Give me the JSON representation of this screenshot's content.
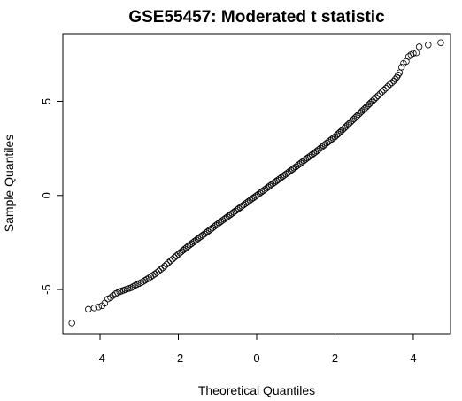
{
  "chart_data": {
    "type": "scatter",
    "title": "GSE55457: Moderated t statistic",
    "xlabel": "Theoretical Quantiles",
    "ylabel": "Sample Quantiles",
    "xlim": [
      -4.95,
      4.95
    ],
    "ylim": [
      -7.35,
      8.6
    ],
    "x_ticks": [
      -4,
      -2,
      0,
      2,
      4
    ],
    "y_ticks": [
      -5,
      0,
      5
    ],
    "grid": false,
    "legend": "none",
    "point_style": "open circle",
    "point_color": "#000000",
    "series": [
      {
        "values": [
          {
            "x": -4.72,
            "y": -6.78
          },
          {
            "x": -4.3,
            "y": -6.05
          },
          {
            "x": -4.15,
            "y": -5.98
          },
          {
            "x": -4.04,
            "y": -5.93
          },
          {
            "x": -3.95,
            "y": -5.86
          },
          {
            "x": -3.88,
            "y": -5.72
          },
          {
            "x": -3.8,
            "y": -5.5
          },
          {
            "x": -3.73,
            "y": -5.43
          },
          {
            "x": -3.67,
            "y": -5.32
          },
          {
            "x": -3.6,
            "y": -5.22
          },
          {
            "x": -3.5,
            "y": -5.12
          },
          {
            "x": -3.4,
            "y": -5.04
          },
          {
            "x": -3.3,
            "y": -4.97
          },
          {
            "x": -3.2,
            "y": -4.9
          },
          {
            "x": -3.1,
            "y": -4.78
          },
          {
            "x": -3.0,
            "y": -4.68
          },
          {
            "x": -2.9,
            "y": -4.58
          },
          {
            "x": -2.8,
            "y": -4.45
          },
          {
            "x": -2.7,
            "y": -4.32
          },
          {
            "x": -2.6,
            "y": -4.18
          },
          {
            "x": -2.5,
            "y": -4.02
          },
          {
            "x": -2.4,
            "y": -3.85
          },
          {
            "x": -2.3,
            "y": -3.66
          },
          {
            "x": -2.2,
            "y": -3.48
          },
          {
            "x": -2.1,
            "y": -3.3
          },
          {
            "x": -2.0,
            "y": -3.12
          },
          {
            "x": -1.75,
            "y": -2.7
          },
          {
            "x": -1.5,
            "y": -2.3
          },
          {
            "x": -1.25,
            "y": -1.92
          },
          {
            "x": -1.0,
            "y": -1.52
          },
          {
            "x": -0.75,
            "y": -1.14
          },
          {
            "x": -0.5,
            "y": -0.76
          },
          {
            "x": -0.25,
            "y": -0.38
          },
          {
            "x": 0.0,
            "y": 0.0
          },
          {
            "x": 0.25,
            "y": 0.38
          },
          {
            "x": 0.5,
            "y": 0.76
          },
          {
            "x": 0.75,
            "y": 1.14
          },
          {
            "x": 1.0,
            "y": 1.52
          },
          {
            "x": 1.25,
            "y": 1.92
          },
          {
            "x": 1.5,
            "y": 2.3
          },
          {
            "x": 1.75,
            "y": 2.72
          },
          {
            "x": 2.0,
            "y": 3.12
          },
          {
            "x": 2.2,
            "y": 3.5
          },
          {
            "x": 2.4,
            "y": 3.9
          },
          {
            "x": 2.6,
            "y": 4.3
          },
          {
            "x": 2.8,
            "y": 4.7
          },
          {
            "x": 3.0,
            "y": 5.1
          },
          {
            "x": 3.1,
            "y": 5.3
          },
          {
            "x": 3.2,
            "y": 5.5
          },
          {
            "x": 3.3,
            "y": 5.7
          },
          {
            "x": 3.4,
            "y": 5.9
          },
          {
            "x": 3.5,
            "y": 6.08
          },
          {
            "x": 3.58,
            "y": 6.28
          },
          {
            "x": 3.65,
            "y": 6.52
          },
          {
            "x": 3.7,
            "y": 6.82
          },
          {
            "x": 3.75,
            "y": 7.02
          },
          {
            "x": 3.82,
            "y": 7.12
          },
          {
            "x": 3.88,
            "y": 7.38
          },
          {
            "x": 3.94,
            "y": 7.48
          },
          {
            "x": 4.0,
            "y": 7.55
          },
          {
            "x": 4.08,
            "y": 7.58
          },
          {
            "x": 4.15,
            "y": 7.9
          },
          {
            "x": 4.38,
            "y": 8.0
          },
          {
            "x": 4.7,
            "y": 8.12
          }
        ]
      }
    ]
  }
}
